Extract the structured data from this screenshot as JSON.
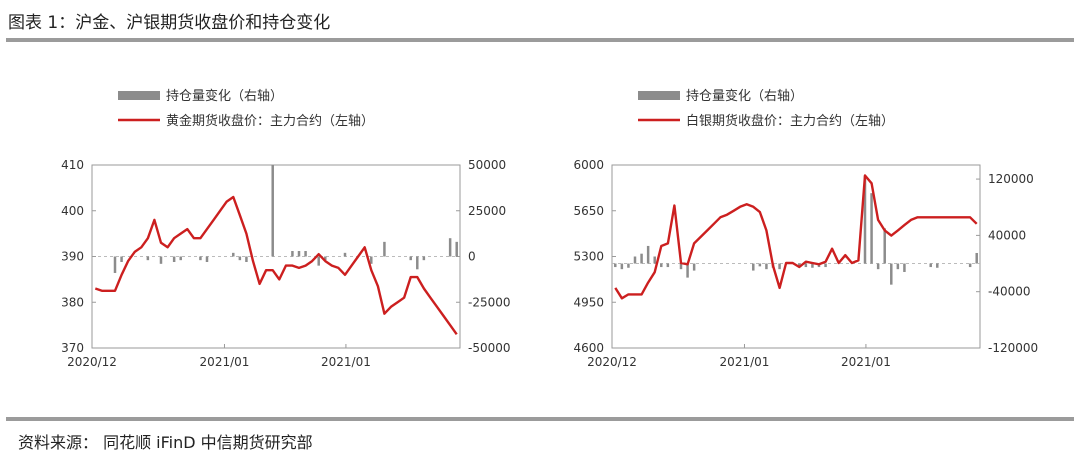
{
  "figure_title": "图表 1：沪金、沪银期货收盘价和持仓变化",
  "source": "资料来源： 同花顺 iFinD 中信期货研究部",
  "colors": {
    "price_line": "#cc1f1f",
    "bars": "#8c8c8c",
    "rule": "#9b9b9b"
  },
  "chart_data": [
    {
      "type": "bar+line",
      "legend": [
        "持仓量变化（右轴）",
        "黄金期货收盘价：主力合约（左轴）"
      ],
      "legend_placement": "top",
      "x_tick_labels": [
        "2020/12",
        "2021/01",
        "2021/01"
      ],
      "y_left": {
        "min": 370,
        "max": 410,
        "ticks": [
          370,
          380,
          390,
          400,
          410
        ]
      },
      "y_right": {
        "min": -50000,
        "max": 50000,
        "ticks": [
          -50000,
          -25000,
          0,
          25000,
          50000
        ]
      },
      "grid": false,
      "price": [
        383,
        382.5,
        382.5,
        382.5,
        386,
        389,
        391,
        392,
        394,
        398,
        393,
        392,
        394,
        395,
        396,
        394,
        394,
        396,
        398,
        400,
        402,
        403,
        399,
        395,
        389,
        384,
        387,
        387,
        385,
        388,
        388,
        387.5,
        388,
        389,
        390.5,
        389,
        388,
        387.5,
        386,
        388,
        390,
        392,
        387,
        383.5,
        377.5,
        379,
        380,
        381,
        385.5,
        385.5,
        383,
        381,
        379,
        377,
        375,
        373
      ],
      "oi_change": [
        0,
        0,
        0,
        -9000,
        -3000,
        0,
        0,
        0,
        -2000,
        0,
        -4000,
        0,
        -3000,
        -2000,
        0,
        0,
        -2000,
        -3000,
        0,
        0,
        0,
        2000,
        -2000,
        -3000,
        0,
        0,
        0,
        50000,
        0,
        0,
        3000,
        3000,
        3000,
        0,
        -5000,
        -2000,
        0,
        0,
        2000,
        0,
        0,
        0,
        -4000,
        0,
        8000,
        0,
        0,
        0,
        -2000,
        -7000,
        -2000,
        0,
        0,
        0,
        10000,
        8000
      ]
    },
    {
      "type": "bar+line",
      "legend": [
        "持仓量变化（右轴）",
        "白银期货收盘价：主力合约（左轴）"
      ],
      "legend_placement": "top",
      "x_tick_labels": [
        "2020/12",
        "2021/01",
        "2021/01"
      ],
      "y_left": {
        "min": 4600,
        "max": 6000,
        "ticks": [
          4600,
          4950,
          5300,
          5650,
          6000
        ]
      },
      "y_right": {
        "min": -120000,
        "max": 140000,
        "ticks": [
          -120000,
          -40000,
          40000,
          120000
        ]
      },
      "grid": false,
      "price": [
        5060,
        4980,
        5010,
        5010,
        5010,
        5100,
        5180,
        5380,
        5400,
        5690,
        5250,
        5240,
        5400,
        5450,
        5500,
        5550,
        5600,
        5620,
        5650,
        5680,
        5700,
        5680,
        5640,
        5500,
        5230,
        5060,
        5250,
        5250,
        5220,
        5260,
        5250,
        5240,
        5260,
        5360,
        5250,
        5310,
        5250,
        5270,
        5920,
        5860,
        5580,
        5500,
        5460,
        5500,
        5540,
        5580,
        5600,
        5600,
        5600,
        5600,
        5600,
        5600,
        5600,
        5600,
        5600,
        5550
      ],
      "oi_change": [
        -5000,
        -8000,
        -6000,
        10000,
        14000,
        25000,
        10000,
        -5000,
        -5000,
        0,
        -8000,
        -20000,
        -10000,
        0,
        0,
        0,
        0,
        0,
        0,
        0,
        0,
        -10000,
        -4000,
        -8000,
        -6000,
        -8000,
        0,
        0,
        -5000,
        -5000,
        -6000,
        -5000,
        -5000,
        0,
        0,
        0,
        0,
        0,
        125000,
        100000,
        -8000,
        50000,
        -30000,
        -8000,
        -12000,
        0,
        0,
        0,
        -5000,
        -6000,
        0,
        0,
        0,
        0,
        -5000,
        15000
      ]
    }
  ]
}
